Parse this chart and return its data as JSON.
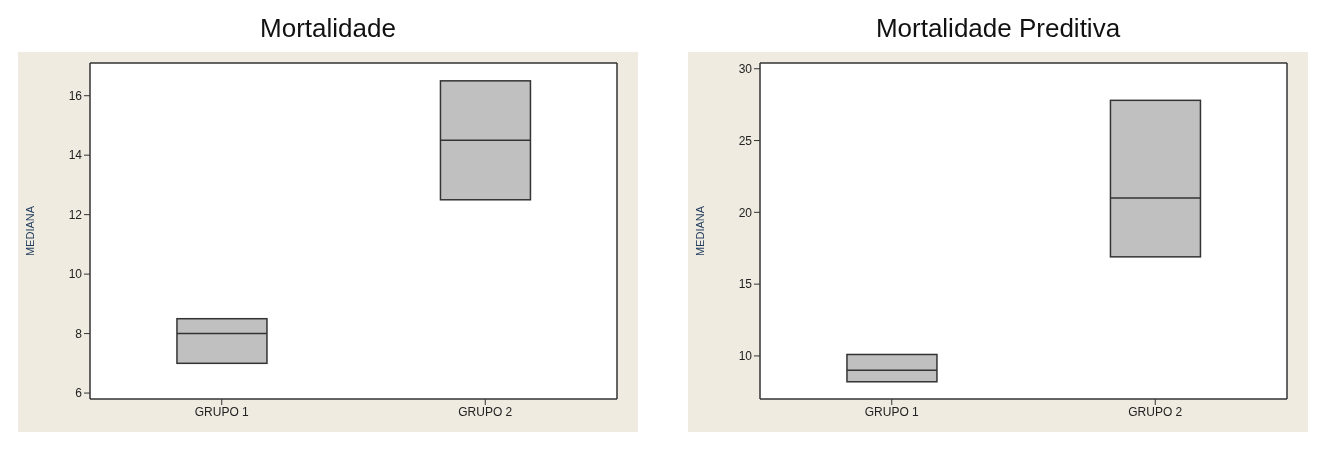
{
  "chart_data": [
    {
      "type": "box",
      "title": "Mortalidade",
      "ylabel": "MEDIANA",
      "categories": [
        "GRUPO 1",
        "GRUPO 2"
      ],
      "ylim": [
        5.8,
        17.1
      ],
      "yticks": [
        6,
        8,
        10,
        12,
        14,
        16
      ],
      "grid": false,
      "legend": false,
      "series": [
        {
          "color": "#c0c0c0",
          "boxes": [
            {
              "low": 7,
              "q1": 7,
              "median": 8,
              "q3": 8.5,
              "high": 8.5
            },
            {
              "low": 12.5,
              "q1": 12.5,
              "median": 14.5,
              "q3": 16.5,
              "high": 16.5
            }
          ]
        }
      ]
    },
    {
      "type": "box",
      "title": "Mortalidade Preditiva",
      "ylabel": "MEDIANA",
      "categories": [
        "GRUPO 1",
        "GRUPO 2"
      ],
      "ylim": [
        7,
        30.4
      ],
      "yticks": [
        10,
        15,
        20,
        25,
        30
      ],
      "grid": false,
      "legend": false,
      "series": [
        {
          "color": "#c0c0c0",
          "boxes": [
            {
              "low": 8.2,
              "q1": 8.2,
              "median": 9,
              "q3": 10.1,
              "high": 10.1
            },
            {
              "low": 16.9,
              "q1": 16.9,
              "median": 21,
              "q3": 27.8,
              "high": 27.8
            }
          ]
        }
      ]
    }
  ]
}
